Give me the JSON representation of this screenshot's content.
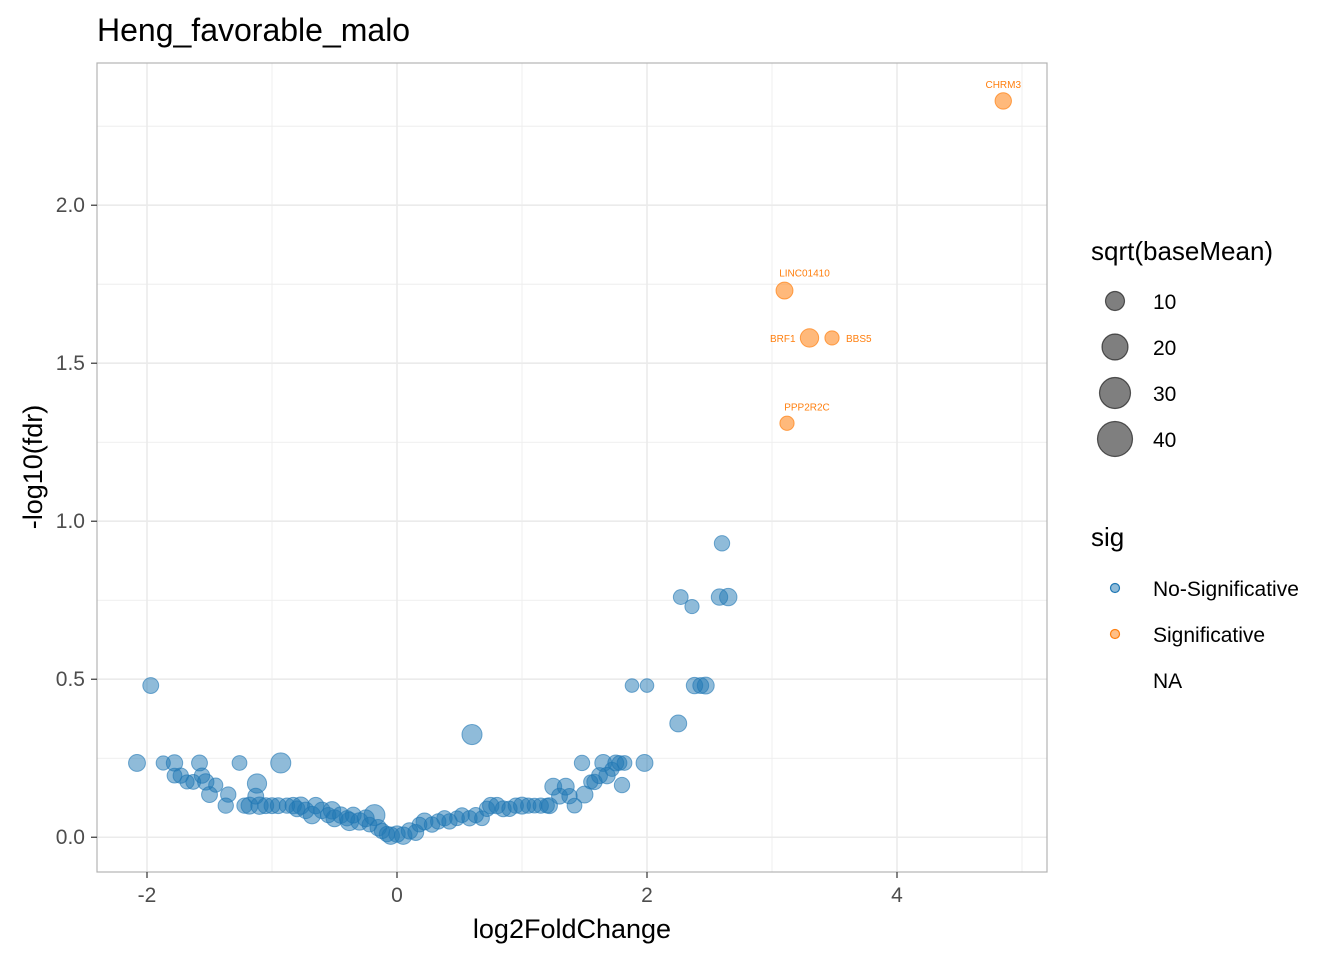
{
  "chart_data": {
    "type": "scatter",
    "title": "Heng_favorable_malo",
    "xlabel": "log2FoldChange",
    "ylabel": "-log10(fdr)",
    "xlim": [
      -2.4,
      5.2
    ],
    "ylim": [
      -0.11,
      2.45
    ],
    "x_ticks": [
      -2,
      0,
      2,
      4
    ],
    "y_ticks": [
      0.0,
      0.5,
      1.0,
      1.5,
      2.0
    ],
    "x_tick_labels": [
      "-2",
      "0",
      "2",
      "4"
    ],
    "y_tick_labels": [
      "0.0",
      "0.5",
      "1.0",
      "1.5",
      "2.0"
    ],
    "grid": true,
    "colors": {
      "no_sig": "#1f77b4",
      "sig": "#ff7f0e",
      "grid": "#ebebeb",
      "panel_border": "#b3b3b3"
    },
    "legend_size": {
      "title": "sqrt(baseMean)",
      "entries": [
        {
          "label": "10",
          "value": 10
        },
        {
          "label": "20",
          "value": 20
        },
        {
          "label": "30",
          "value": 30
        },
        {
          "label": "40",
          "value": 40
        }
      ]
    },
    "legend_sig": {
      "title": "sig",
      "entries": [
        {
          "label": "No-Significative",
          "key": "no_sig"
        },
        {
          "label": "Significative",
          "key": "sig"
        },
        {
          "label": "NA",
          "key": "na"
        }
      ]
    },
    "labeled_points": [
      {
        "label": "CHRM3",
        "x": 4.85,
        "y": 2.33,
        "size": 16
      },
      {
        "label": "LINC01410",
        "x": 3.1,
        "y": 1.73,
        "size": 17
      },
      {
        "label": "BRF1",
        "x": 3.3,
        "y": 1.58,
        "size": 20
      },
      {
        "label": "BBS5",
        "x": 3.48,
        "y": 1.58,
        "size": 12
      },
      {
        "label": "PPP2R2C",
        "x": 3.12,
        "y": 1.31,
        "size": 12
      }
    ],
    "series": [
      {
        "name": "No-Significative",
        "points": [
          [
            -2.08,
            0.235,
            17
          ],
          [
            -1.97,
            0.48,
            15
          ],
          [
            -1.87,
            0.235,
            12
          ],
          [
            -1.78,
            0.235,
            16
          ],
          [
            -1.73,
            0.195,
            14
          ],
          [
            -1.78,
            0.195,
            13
          ],
          [
            -1.68,
            0.175,
            12
          ],
          [
            -1.63,
            0.175,
            13
          ],
          [
            -1.58,
            0.235,
            15
          ],
          [
            -1.56,
            0.195,
            14
          ],
          [
            -1.53,
            0.175,
            16
          ],
          [
            -1.5,
            0.135,
            15
          ],
          [
            -1.45,
            0.165,
            12
          ],
          [
            -1.35,
            0.135,
            14
          ],
          [
            -1.37,
            0.1,
            14
          ],
          [
            -1.26,
            0.235,
            13
          ],
          [
            -1.22,
            0.1,
            14
          ],
          [
            -1.18,
            0.1,
            17
          ],
          [
            -1.13,
            0.13,
            15
          ],
          [
            -1.12,
            0.17,
            22
          ],
          [
            -1.1,
            0.1,
            18
          ],
          [
            -1.05,
            0.1,
            15
          ],
          [
            -1.0,
            0.1,
            15
          ],
          [
            -0.95,
            0.1,
            15
          ],
          [
            -0.93,
            0.235,
            24
          ],
          [
            -0.88,
            0.1,
            14
          ],
          [
            -0.83,
            0.1,
            16
          ],
          [
            -0.8,
            0.09,
            15
          ],
          [
            -0.77,
            0.1,
            18
          ],
          [
            -0.73,
            0.085,
            16
          ],
          [
            -0.68,
            0.07,
            18
          ],
          [
            -0.65,
            0.1,
            16
          ],
          [
            -0.6,
            0.085,
            16
          ],
          [
            -0.55,
            0.07,
            14
          ],
          [
            -0.52,
            0.085,
            18
          ],
          [
            -0.5,
            0.06,
            17
          ],
          [
            -0.45,
            0.07,
            16
          ],
          [
            -0.4,
            0.06,
            14
          ],
          [
            -0.38,
            0.05,
            20
          ],
          [
            -0.35,
            0.07,
            15
          ],
          [
            -0.3,
            0.05,
            18
          ],
          [
            -0.25,
            0.06,
            17
          ],
          [
            -0.22,
            0.04,
            13
          ],
          [
            -0.18,
            0.07,
            26
          ],
          [
            -0.15,
            0.03,
            16
          ],
          [
            -0.12,
            0.02,
            14
          ],
          [
            -0.08,
            0.01,
            14
          ],
          [
            -0.05,
            0.005,
            18
          ],
          [
            0.0,
            0.01,
            16
          ],
          [
            0.05,
            0.005,
            18
          ],
          [
            0.1,
            0.02,
            16
          ],
          [
            0.15,
            0.015,
            15
          ],
          [
            0.18,
            0.04,
            13
          ],
          [
            0.22,
            0.05,
            17
          ],
          [
            0.28,
            0.04,
            14
          ],
          [
            0.33,
            0.05,
            14
          ],
          [
            0.38,
            0.06,
            14
          ],
          [
            0.42,
            0.05,
            14
          ],
          [
            0.48,
            0.06,
            13
          ],
          [
            0.52,
            0.07,
            13
          ],
          [
            0.58,
            0.06,
            14
          ],
          [
            0.6,
            0.325,
            24
          ],
          [
            0.63,
            0.07,
            14
          ],
          [
            0.68,
            0.06,
            13
          ],
          [
            0.72,
            0.09,
            14
          ],
          [
            0.75,
            0.1,
            16
          ],
          [
            0.8,
            0.1,
            16
          ],
          [
            0.85,
            0.09,
            15
          ],
          [
            0.9,
            0.09,
            14
          ],
          [
            0.95,
            0.1,
            14
          ],
          [
            1.0,
            0.1,
            17
          ],
          [
            1.05,
            0.1,
            14
          ],
          [
            1.1,
            0.1,
            13
          ],
          [
            1.15,
            0.1,
            14
          ],
          [
            1.2,
            0.1,
            13
          ],
          [
            1.22,
            0.1,
            15
          ],
          [
            1.25,
            0.16,
            17
          ],
          [
            1.3,
            0.13,
            15
          ],
          [
            1.35,
            0.16,
            17
          ],
          [
            1.38,
            0.13,
            14
          ],
          [
            1.42,
            0.1,
            13
          ],
          [
            1.48,
            0.235,
            14
          ],
          [
            1.5,
            0.135,
            17
          ],
          [
            1.55,
            0.175,
            12
          ],
          [
            1.58,
            0.175,
            14
          ],
          [
            1.62,
            0.195,
            15
          ],
          [
            1.65,
            0.235,
            17
          ],
          [
            1.68,
            0.195,
            16
          ],
          [
            1.72,
            0.215,
            12
          ],
          [
            1.75,
            0.235,
            15
          ],
          [
            1.78,
            0.235,
            13
          ],
          [
            1.8,
            0.165,
            14
          ],
          [
            1.82,
            0.235,
            13
          ],
          [
            1.88,
            0.48,
            11
          ],
          [
            1.98,
            0.235,
            17
          ],
          [
            2.0,
            0.48,
            11
          ],
          [
            2.25,
            0.36,
            17
          ],
          [
            2.27,
            0.76,
            13
          ],
          [
            2.36,
            0.73,
            12
          ],
          [
            2.38,
            0.48,
            16
          ],
          [
            2.43,
            0.48,
            15
          ],
          [
            2.47,
            0.48,
            17
          ],
          [
            2.58,
            0.76,
            16
          ],
          [
            2.6,
            0.93,
            14
          ],
          [
            2.65,
            0.76,
            18
          ]
        ]
      }
    ]
  }
}
